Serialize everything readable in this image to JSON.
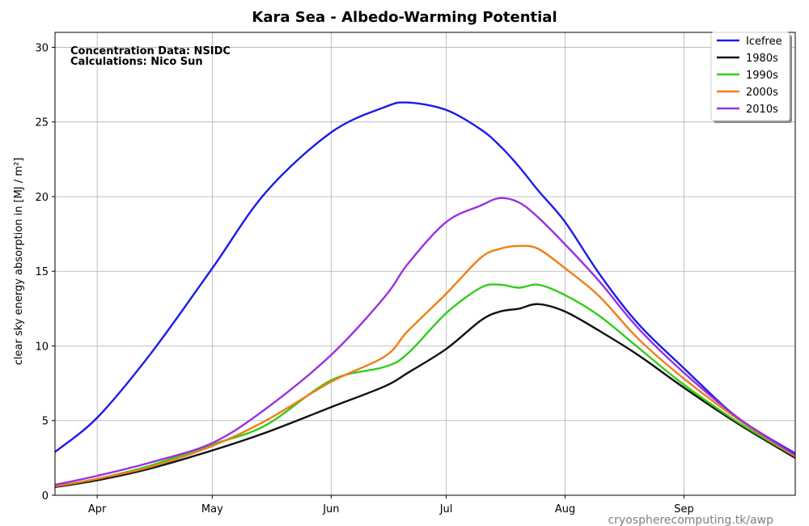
{
  "chart_data": {
    "type": "line",
    "title": "Kara Sea - Albedo-Warming Potential",
    "ylabel": "clear sky energy absorption in  [MJ / m²]",
    "xlabel": "",
    "xlim": [
      "Mar 21",
      "Sep 30"
    ],
    "ylim": [
      0,
      31
    ],
    "yticks": [
      0,
      5,
      10,
      15,
      20,
      25,
      30
    ],
    "xticks": [
      {
        "label": "Apr",
        "date": "Apr 1"
      },
      {
        "label": "May",
        "date": "May 1"
      },
      {
        "label": "Jun",
        "date": "Jun 1"
      },
      {
        "label": "Jul",
        "date": "Jul 1"
      },
      {
        "label": "Aug",
        "date": "Aug 1"
      },
      {
        "label": "Sep",
        "date": "Sep 1"
      }
    ],
    "grid": true,
    "legend_position": "top-right",
    "annotations": [
      "Concentration Data: NSIDC",
      "Calculations: Nico Sun"
    ],
    "source_text": "cryospherecomputing.tk/awp",
    "x": [
      "Mar 21",
      "Apr 1",
      "Apr 15",
      "May 1",
      "May 15",
      "Jun 1",
      "Jun 15",
      "Jun 21",
      "Jul 1",
      "Jul 10",
      "Jul 15",
      "Jul 20",
      "Jul 25",
      "Aug 1",
      "Aug 10",
      "Aug 20",
      "Sep 1",
      "Sep 15",
      "Sep 30"
    ],
    "series": [
      {
        "name": "Icefree",
        "color": "#1a1aee",
        "values": [
          2.9,
          5.2,
          9.5,
          15.2,
          20.3,
          24.3,
          26.0,
          26.3,
          25.8,
          24.5,
          23.4,
          22.0,
          20.4,
          18.3,
          14.8,
          11.5,
          8.5,
          5.2,
          2.8
        ]
      },
      {
        "name": "1980s",
        "color": "#111111",
        "values": [
          0.55,
          1.0,
          1.8,
          3.0,
          4.2,
          5.9,
          7.3,
          8.2,
          9.8,
          11.7,
          12.3,
          12.5,
          12.8,
          12.3,
          11.0,
          9.4,
          7.2,
          4.8,
          2.5
        ]
      },
      {
        "name": "1990s",
        "color": "#33cc1a",
        "values": [
          0.6,
          1.1,
          2.0,
          3.4,
          4.7,
          7.7,
          8.6,
          9.5,
          12.2,
          13.9,
          14.1,
          13.9,
          14.1,
          13.4,
          12.0,
          9.9,
          7.4,
          4.9,
          2.6
        ]
      },
      {
        "name": "2000s",
        "color": "#f07e17",
        "values": [
          0.6,
          1.1,
          1.9,
          3.3,
          5.0,
          7.6,
          9.3,
          11.0,
          13.5,
          15.9,
          16.5,
          16.7,
          16.5,
          15.2,
          13.3,
          10.5,
          7.8,
          5.1,
          2.6
        ]
      },
      {
        "name": "2010s",
        "color": "#9b30e0",
        "values": [
          0.7,
          1.3,
          2.2,
          3.5,
          5.8,
          9.4,
          13.3,
          15.5,
          18.3,
          19.4,
          19.9,
          19.6,
          18.6,
          16.8,
          14.3,
          11.2,
          8.2,
          5.2,
          2.7
        ]
      }
    ]
  }
}
